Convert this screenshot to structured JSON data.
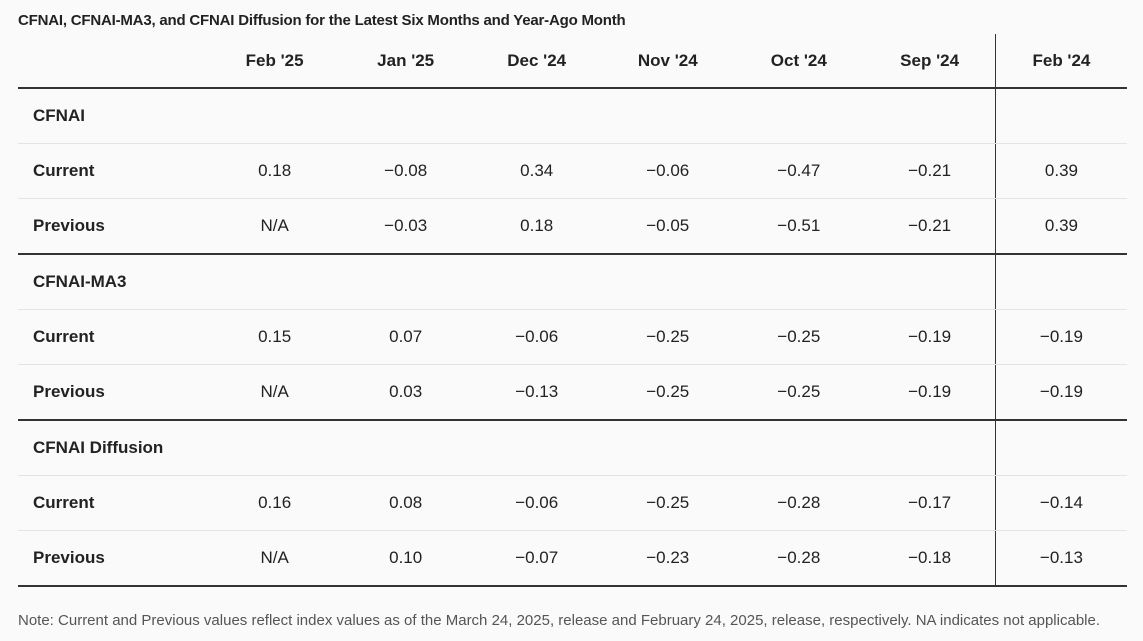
{
  "chart_data": {
    "type": "table",
    "title": "CFNAI, CFNAI-MA3, and CFNAI Diffusion for the Latest Six Months and Year-Ago Month",
    "columns": [
      "Feb '25",
      "Jan '25",
      "Dec '24",
      "Nov '24",
      "Oct '24",
      "Sep '24",
      "Feb '24"
    ],
    "groups": [
      {
        "name": "CFNAI",
        "rows": [
          {
            "label": "Current",
            "values": [
              "0.18",
              "−0.08",
              "0.34",
              "−0.06",
              "−0.47",
              "−0.21",
              "0.39"
            ]
          },
          {
            "label": "Previous",
            "values": [
              "N/A",
              "−0.03",
              "0.18",
              "−0.05",
              "−0.51",
              "−0.21",
              "0.39"
            ]
          }
        ]
      },
      {
        "name": "CFNAI-MA3",
        "rows": [
          {
            "label": "Current",
            "values": [
              "0.15",
              "0.07",
              "−0.06",
              "−0.25",
              "−0.25",
              "−0.19",
              "−0.19"
            ]
          },
          {
            "label": "Previous",
            "values": [
              "N/A",
              "0.03",
              "−0.13",
              "−0.25",
              "−0.25",
              "−0.19",
              "−0.19"
            ]
          }
        ]
      },
      {
        "name": "CFNAI Diffusion",
        "rows": [
          {
            "label": "Current",
            "values": [
              "0.16",
              "0.08",
              "−0.06",
              "−0.25",
              "−0.28",
              "−0.17",
              "−0.14"
            ]
          },
          {
            "label": "Previous",
            "values": [
              "N/A",
              "0.10",
              "−0.07",
              "−0.23",
              "−0.28",
              "−0.18",
              "−0.13"
            ]
          }
        ]
      }
    ],
    "note": "Note: Current and Previous values reflect index values as of the March 24, 2025, release and February 24, 2025, release, respectively. NA indicates not applicable."
  }
}
